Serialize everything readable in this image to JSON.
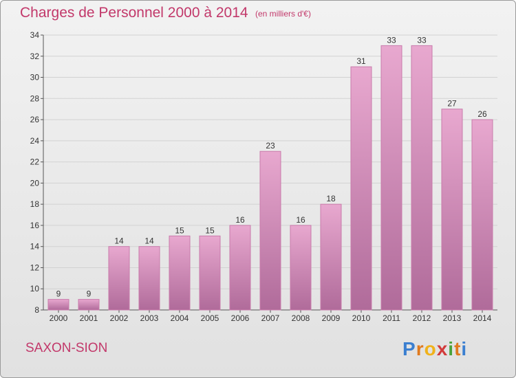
{
  "header": {
    "title": "Charges de Personnel 2000 à 2014",
    "subtitle": "(en milliers d'€)"
  },
  "footer": {
    "commune": "SAXON-SION",
    "logo_text": "Proxiti"
  },
  "colors": {
    "accent": "#c2386a",
    "bar_top": "#e8a8cf",
    "bar_bottom": "#b06b9a",
    "bar_edge": "#c97bab"
  },
  "chart_data": {
    "type": "bar",
    "title": "Charges de Personnel 2000 à 2014",
    "subtitle": "(en milliers d'€)",
    "xlabel": "",
    "ylabel": "",
    "categories": [
      "2000",
      "2001",
      "2002",
      "2003",
      "2004",
      "2005",
      "2006",
      "2007",
      "2008",
      "2009",
      "2010",
      "2011",
      "2012",
      "2013",
      "2014"
    ],
    "values": [
      9,
      9,
      14,
      14,
      15,
      15,
      16,
      23,
      16,
      18,
      31,
      33,
      33,
      27,
      26
    ],
    "ylim": [
      8,
      34
    ],
    "yticks": [
      8,
      10,
      12,
      14,
      16,
      18,
      20,
      22,
      24,
      26,
      28,
      30,
      32,
      34
    ],
    "grid": true,
    "data_labels": true
  }
}
